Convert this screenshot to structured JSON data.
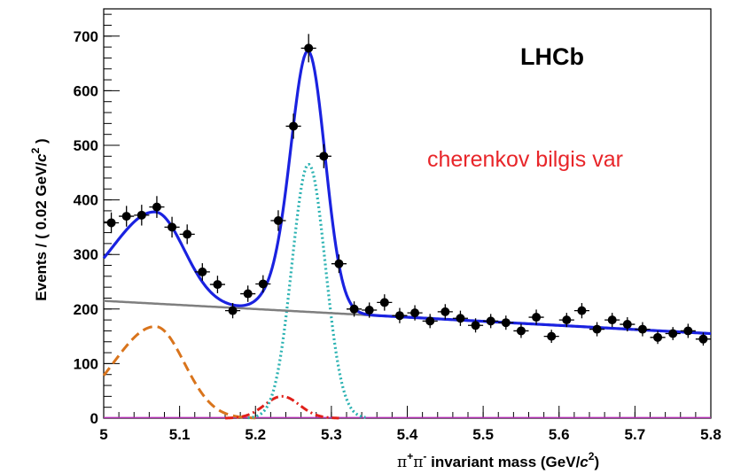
{
  "chart_data": {
    "type": "scatter",
    "experiment_label": "LHCb",
    "annotation": "cherenkov bilgis var",
    "xlabel": {
      "main": "π",
      "sup1": "+",
      "mid": "π",
      "sup2": "-",
      "rest": " invariant mass (GeV/",
      "c": "c",
      "sup3": "2",
      "close": ")"
    },
    "ylabel": {
      "main": "Events / ( 0.02 GeV/",
      "c": "c",
      "sup": "2",
      "close": " )"
    },
    "xlim": [
      5.0,
      5.8
    ],
    "ylim": [
      0,
      750
    ],
    "x_ticks": [
      "5",
      "5.1",
      "5.2",
      "5.3",
      "5.4",
      "5.5",
      "5.6",
      "5.7",
      "5.8"
    ],
    "y_ticks": [
      "0",
      "100",
      "200",
      "300",
      "400",
      "500",
      "600",
      "700"
    ],
    "grid": false,
    "x_bin_half_width": 0.01,
    "series": [
      {
        "kind": "data",
        "color": "#000000",
        "x": [
          5.01,
          5.03,
          5.05,
          5.07,
          5.09,
          5.11,
          5.13,
          5.15,
          5.17,
          5.19,
          5.21,
          5.23,
          5.25,
          5.27,
          5.29,
          5.31,
          5.33,
          5.35,
          5.37,
          5.39,
          5.41,
          5.43,
          5.45,
          5.47,
          5.49,
          5.51,
          5.53,
          5.55,
          5.57,
          5.59,
          5.61,
          5.63,
          5.65,
          5.67,
          5.69,
          5.71,
          5.73,
          5.75,
          5.77,
          5.79
        ],
        "y": [
          358,
          370,
          372,
          387,
          350,
          337,
          268,
          245,
          197,
          228,
          246,
          362,
          535,
          678,
          480,
          283,
          200,
          198,
          212,
          188,
          193,
          178,
          195,
          183,
          170,
          178,
          175,
          160,
          185,
          150,
          180,
          197,
          163,
          180,
          172,
          163,
          148,
          155,
          160,
          145
        ],
        "yerr": [
          19,
          19,
          19,
          20,
          19,
          18,
          16,
          16,
          14,
          15,
          16,
          19,
          23,
          26,
          22,
          17,
          14,
          14,
          15,
          14,
          14,
          13,
          14,
          14,
          13,
          13,
          13,
          13,
          14,
          12,
          13,
          14,
          13,
          13,
          13,
          13,
          12,
          12,
          13,
          12
        ]
      },
      {
        "kind": "curve",
        "component": "total",
        "style": "solid",
        "color": "#1a22e0"
      },
      {
        "kind": "curve",
        "component": "combinatorial",
        "style": "solid",
        "color": "#7f7f7f",
        "y_at_xmin": 215,
        "y_at_xmax": 155
      },
      {
        "kind": "curve",
        "component": "signal",
        "style": "dotted",
        "color": "#2bb2b2",
        "mean": 5.27,
        "sigma": 0.022,
        "peak": 465
      },
      {
        "kind": "curve",
        "component": "partially-reconstructed",
        "style": "dashed",
        "color": "#d9741c",
        "mean": 5.068,
        "sigma_left": 0.055,
        "sigma_right": 0.038,
        "peak": 168
      },
      {
        "kind": "curve",
        "component": "misidentified",
        "style": "dash-dot",
        "color": "#e0201a",
        "mean": 5.235,
        "sigma": 0.023,
        "peak": 40
      },
      {
        "kind": "curve",
        "component": "other",
        "style": "solid",
        "color": "#b02bb0",
        "y_const": 1
      }
    ]
  }
}
